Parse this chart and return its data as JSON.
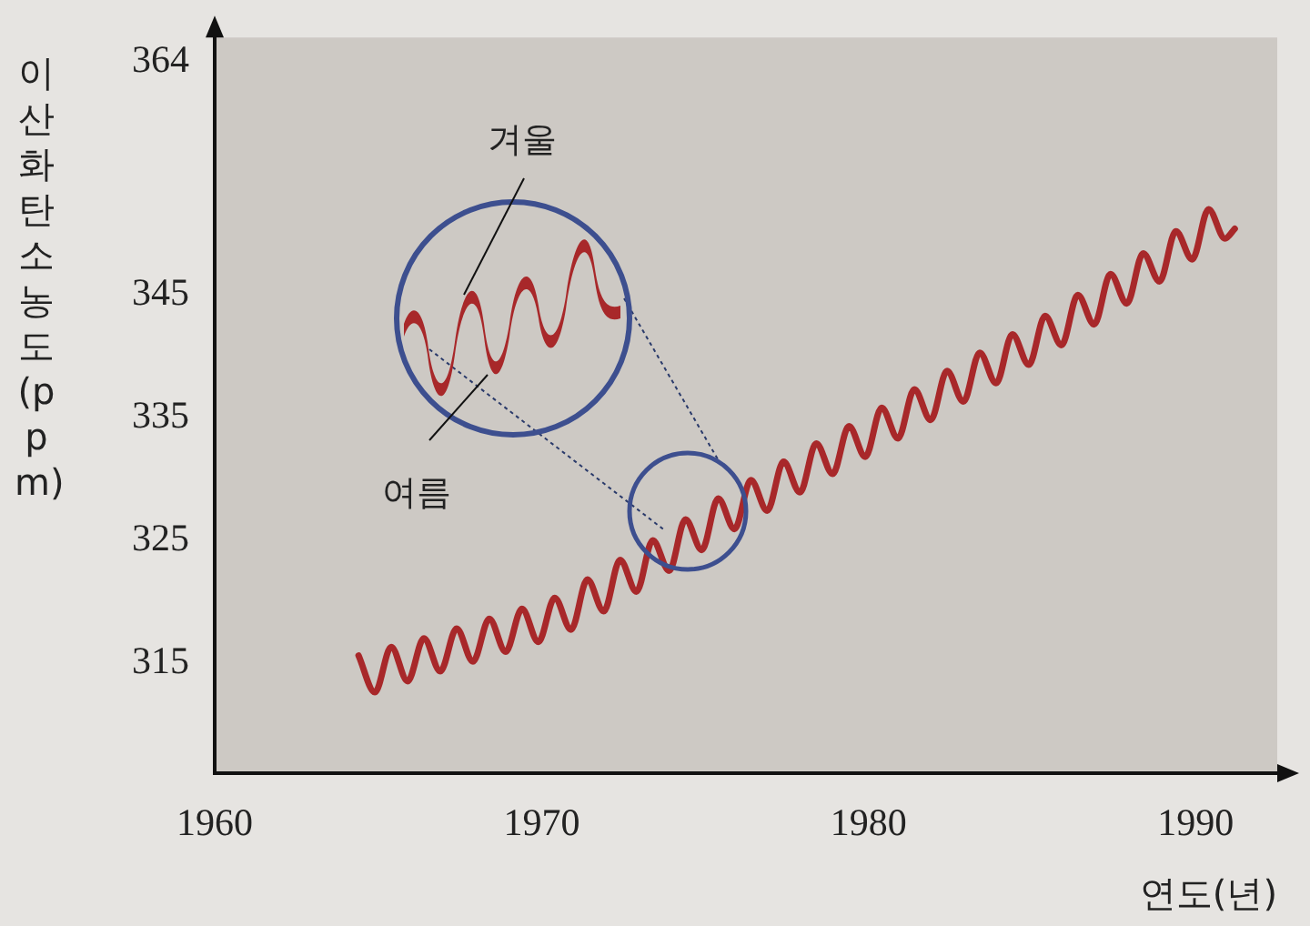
{
  "chart_data": {
    "type": "line",
    "xlabel": "연도(년)",
    "ylabel": "이산화 탄소 농도(ppm)",
    "annotations": [
      "겨울",
      "여름"
    ],
    "xlim": [
      1960,
      1992.5
    ],
    "xticks": [
      1960,
      1970,
      1980,
      1990
    ],
    "ylim": [
      306,
      366
    ],
    "yticks": [
      315,
      325,
      335,
      345,
      364
    ],
    "marker": "none",
    "line_style": "solid",
    "series": [
      {
        "color": "#a8282a",
        "x": [
          1964.4,
          1964.9,
          1965.4,
          1965.9,
          1966.4,
          1966.9,
          1967.4,
          1967.9,
          1968.4,
          1968.9,
          1969.4,
          1969.9,
          1970.4,
          1970.9,
          1971.4,
          1971.9,
          1972.4,
          1972.9,
          1973.4,
          1973.9,
          1974.4,
          1974.9,
          1975.4,
          1975.9,
          1976.4,
          1976.9,
          1977.4,
          1977.9,
          1978.4,
          1978.9,
          1979.4,
          1979.9,
          1980.4,
          1980.9,
          1981.4,
          1981.9,
          1982.4,
          1982.9,
          1983.4,
          1983.9,
          1984.4,
          1984.9,
          1985.4,
          1985.9,
          1986.4,
          1986.9,
          1987.4,
          1987.9,
          1988.4,
          1988.9,
          1989.4,
          1989.9,
          1990.4,
          1990.9,
          1991.2
        ],
        "values": [
          315.6,
          312.6,
          316.3,
          313.5,
          317.0,
          314.3,
          317.8,
          315.1,
          318.6,
          315.9,
          319.4,
          316.7,
          320.3,
          317.7,
          321.8,
          319.2,
          323.4,
          320.8,
          325.0,
          322.5,
          326.7,
          324.2,
          328.4,
          325.9,
          329.9,
          327.4,
          331.4,
          328.9,
          332.9,
          330.4,
          334.3,
          331.8,
          335.8,
          333.3,
          337.3,
          334.8,
          338.8,
          336.3,
          340.3,
          337.8,
          341.8,
          339.3,
          343.3,
          340.9,
          345.0,
          342.6,
          346.7,
          344.3,
          348.4,
          346.1,
          350.2,
          347.9,
          352.0,
          349.6,
          350.4
        ]
      }
    ]
  }
}
